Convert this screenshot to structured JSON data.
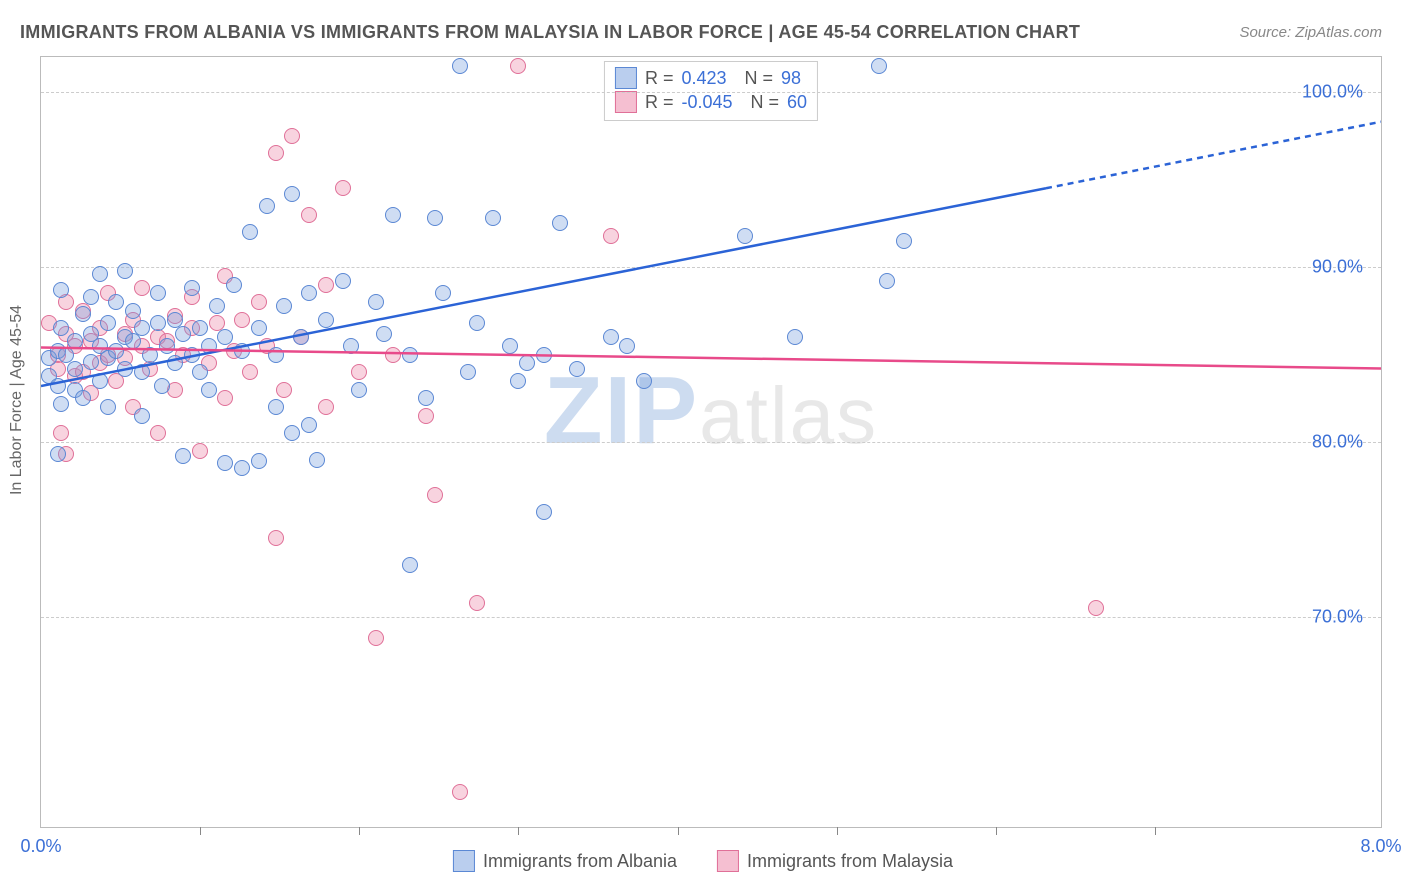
{
  "title": "IMMIGRANTS FROM ALBANIA VS IMMIGRANTS FROM MALAYSIA IN LABOR FORCE | AGE 45-54 CORRELATION CHART",
  "source_label": "Source: ZipAtlas.com",
  "ylabel": "In Labor Force | Age 45-54",
  "watermark_primary": "ZIP",
  "watermark_secondary": "atlas",
  "chart": {
    "type": "scatter",
    "xlim": [
      0.0,
      8.0
    ],
    "ylim": [
      58.0,
      102.0
    ],
    "ytick_values": [
      70.0,
      80.0,
      90.0,
      100.0
    ],
    "ytick_labels": [
      "70.0%",
      "80.0%",
      "90.0%",
      "100.0%"
    ],
    "xtick_left": {
      "value": 0.0,
      "label": "0.0%"
    },
    "xtick_right": {
      "value": 8.0,
      "label": "8.0%"
    },
    "minor_xticks": [
      0.95,
      1.9,
      2.85,
      3.8,
      4.75,
      5.7,
      6.65
    ],
    "grid_color": "#cccccc",
    "background_color": "#ffffff",
    "series_a": {
      "name": "Immigrants from Albania",
      "color_fill": "rgba(118,158,222,0.35)",
      "color_stroke": "#5b88d4",
      "r_value": "0.423",
      "n_value": "98",
      "trend": {
        "x1": 0.0,
        "y1": 83.2,
        "x2": 6.0,
        "y2": 94.5,
        "x2_dash": 8.0,
        "y2_dash": 98.3,
        "color": "#2b63d6",
        "width": 2.5
      },
      "points": [
        [
          0.05,
          84.8
        ],
        [
          0.05,
          83.8
        ],
        [
          0.1,
          85.2
        ],
        [
          0.1,
          83.2
        ],
        [
          0.12,
          86.5
        ],
        [
          0.12,
          82.2
        ],
        [
          0.1,
          79.3
        ],
        [
          0.12,
          88.7
        ],
        [
          0.15,
          85.0
        ],
        [
          0.2,
          85.8
        ],
        [
          0.2,
          84.2
        ],
        [
          0.2,
          83.0
        ],
        [
          0.25,
          87.3
        ],
        [
          0.25,
          82.5
        ],
        [
          0.3,
          86.2
        ],
        [
          0.3,
          84.6
        ],
        [
          0.3,
          88.3
        ],
        [
          0.35,
          85.5
        ],
        [
          0.35,
          83.5
        ],
        [
          0.35,
          89.6
        ],
        [
          0.4,
          86.8
        ],
        [
          0.4,
          84.8
        ],
        [
          0.4,
          82.0
        ],
        [
          0.45,
          88.0
        ],
        [
          0.45,
          85.2
        ],
        [
          0.5,
          86.0
        ],
        [
          0.5,
          84.2
        ],
        [
          0.5,
          89.8
        ],
        [
          0.55,
          87.5
        ],
        [
          0.55,
          85.8
        ],
        [
          0.6,
          84.0
        ],
        [
          0.6,
          86.5
        ],
        [
          0.6,
          81.5
        ],
        [
          0.65,
          85.0
        ],
        [
          0.7,
          86.8
        ],
        [
          0.7,
          88.5
        ],
        [
          0.72,
          83.2
        ],
        [
          0.75,
          85.5
        ],
        [
          0.8,
          87.0
        ],
        [
          0.8,
          84.5
        ],
        [
          0.85,
          86.2
        ],
        [
          0.85,
          79.2
        ],
        [
          0.9,
          85.0
        ],
        [
          0.9,
          88.8
        ],
        [
          0.95,
          84.0
        ],
        [
          0.95,
          86.5
        ],
        [
          1.0,
          85.5
        ],
        [
          1.0,
          83.0
        ],
        [
          1.05,
          87.8
        ],
        [
          1.1,
          86.0
        ],
        [
          1.1,
          78.8
        ],
        [
          1.15,
          89.0
        ],
        [
          1.2,
          85.2
        ],
        [
          1.2,
          78.5
        ],
        [
          1.25,
          92.0
        ],
        [
          1.3,
          86.5
        ],
        [
          1.3,
          78.9
        ],
        [
          1.35,
          93.5
        ],
        [
          1.4,
          85.0
        ],
        [
          1.4,
          82.0
        ],
        [
          1.45,
          87.8
        ],
        [
          1.5,
          94.2
        ],
        [
          1.5,
          80.5
        ],
        [
          1.55,
          86.0
        ],
        [
          1.6,
          88.5
        ],
        [
          1.6,
          81.0
        ],
        [
          1.65,
          79.0
        ],
        [
          1.7,
          87.0
        ],
        [
          1.8,
          89.2
        ],
        [
          1.85,
          85.5
        ],
        [
          1.9,
          83.0
        ],
        [
          1.95,
          112.0
        ],
        [
          2.0,
          88.0
        ],
        [
          2.05,
          86.2
        ],
        [
          2.1,
          93.0
        ],
        [
          2.2,
          85.0
        ],
        [
          2.2,
          73.0
        ],
        [
          2.3,
          82.5
        ],
        [
          2.35,
          92.8
        ],
        [
          2.4,
          88.5
        ],
        [
          2.5,
          101.5
        ],
        [
          2.55,
          84.0
        ],
        [
          2.6,
          86.8
        ],
        [
          2.7,
          92.8
        ],
        [
          2.8,
          85.5
        ],
        [
          2.85,
          83.5
        ],
        [
          2.9,
          84.5
        ],
        [
          3.0,
          85.0
        ],
        [
          3.0,
          76.0
        ],
        [
          3.1,
          92.5
        ],
        [
          3.2,
          84.2
        ],
        [
          3.4,
          86.0
        ],
        [
          3.5,
          85.5
        ],
        [
          3.6,
          83.5
        ],
        [
          4.2,
          91.8
        ],
        [
          4.5,
          86.0
        ],
        [
          5.0,
          101.5
        ],
        [
          5.05,
          89.2
        ],
        [
          5.15,
          91.5
        ]
      ]
    },
    "series_b": {
      "name": "Immigrants from Malaysia",
      "color_fill": "rgba(236,128,164,0.35)",
      "color_stroke": "#e07098",
      "r_value": "-0.045",
      "n_value": "60",
      "trend": {
        "x1": 0.0,
        "y1": 85.4,
        "x2": 8.0,
        "y2": 84.2,
        "color": "#e84a8a",
        "width": 2.5
      },
      "points": [
        [
          0.05,
          86.8
        ],
        [
          0.1,
          85.0
        ],
        [
          0.1,
          84.2
        ],
        [
          0.12,
          80.5
        ],
        [
          0.15,
          86.2
        ],
        [
          0.15,
          88.0
        ],
        [
          0.15,
          79.3
        ],
        [
          0.2,
          85.5
        ],
        [
          0.2,
          83.8
        ],
        [
          0.25,
          87.5
        ],
        [
          0.25,
          84.0
        ],
        [
          0.3,
          85.8
        ],
        [
          0.3,
          82.8
        ],
        [
          0.35,
          86.5
        ],
        [
          0.35,
          84.5
        ],
        [
          0.4,
          88.5
        ],
        [
          0.4,
          85.0
        ],
        [
          0.45,
          83.5
        ],
        [
          0.5,
          86.2
        ],
        [
          0.5,
          84.8
        ],
        [
          0.55,
          87.0
        ],
        [
          0.55,
          82.0
        ],
        [
          0.6,
          85.5
        ],
        [
          0.6,
          88.8
        ],
        [
          0.65,
          84.2
        ],
        [
          0.7,
          86.0
        ],
        [
          0.7,
          80.5
        ],
        [
          0.75,
          85.8
        ],
        [
          0.8,
          87.2
        ],
        [
          0.8,
          83.0
        ],
        [
          0.85,
          85.0
        ],
        [
          0.9,
          86.5
        ],
        [
          0.9,
          88.3
        ],
        [
          0.95,
          79.5
        ],
        [
          1.0,
          84.5
        ],
        [
          1.05,
          86.8
        ],
        [
          1.1,
          89.5
        ],
        [
          1.1,
          82.5
        ],
        [
          1.15,
          85.2
        ],
        [
          1.2,
          87.0
        ],
        [
          1.25,
          84.0
        ],
        [
          1.3,
          88.0
        ],
        [
          1.35,
          85.5
        ],
        [
          1.4,
          74.5
        ],
        [
          1.4,
          96.5
        ],
        [
          1.45,
          83.0
        ],
        [
          1.5,
          97.5
        ],
        [
          1.55,
          86.0
        ],
        [
          1.6,
          93.0
        ],
        [
          1.7,
          82.0
        ],
        [
          1.7,
          89.0
        ],
        [
          1.8,
          94.5
        ],
        [
          1.9,
          84.0
        ],
        [
          2.0,
          68.8
        ],
        [
          2.1,
          85.0
        ],
        [
          2.3,
          81.5
        ],
        [
          2.35,
          77.0
        ],
        [
          2.5,
          60.0
        ],
        [
          2.6,
          70.8
        ],
        [
          2.85,
          101.5
        ],
        [
          3.4,
          91.8
        ],
        [
          6.3,
          70.5
        ]
      ]
    }
  },
  "bottom_legend": {
    "items": [
      {
        "label": "Immigrants from Albania",
        "swatch": "a"
      },
      {
        "label": "Immigrants from Malaysia",
        "swatch": "b"
      }
    ]
  }
}
